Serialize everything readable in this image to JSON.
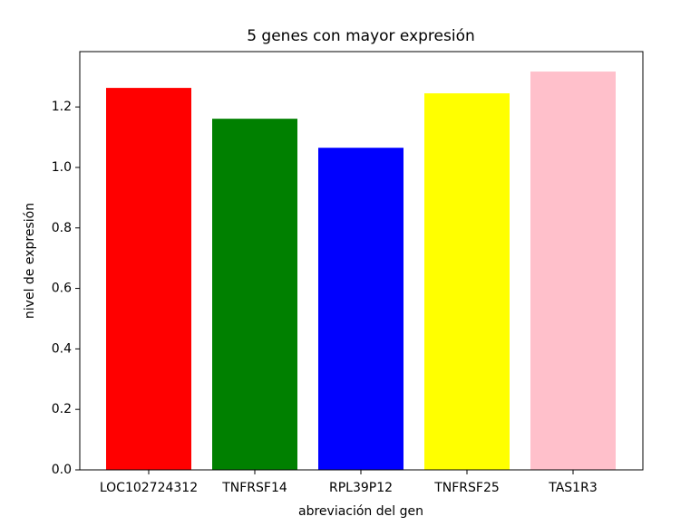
{
  "chart_data": {
    "type": "bar",
    "title": "5 genes con mayor expresión",
    "x_label": "abreviación del gen",
    "y_label": "nivel de expresión",
    "categories": [
      "LOC102724312",
      "TNFRSF14",
      "RPL39P12",
      "TNFRSF25",
      "TAS1R3"
    ],
    "values": [
      1.263,
      1.161,
      1.065,
      1.245,
      1.317
    ],
    "colors": [
      "red",
      "green",
      "blue",
      "yellow",
      "pink"
    ],
    "ylim": [
      0,
      1.383
    ],
    "yticks": [
      {
        "value": 0,
        "label": "0.0"
      },
      0.2,
      0.4,
      0.6,
      0.8,
      {
        "value": 1,
        "label": "1.0"
      },
      1.2
    ],
    "grid": false
  }
}
